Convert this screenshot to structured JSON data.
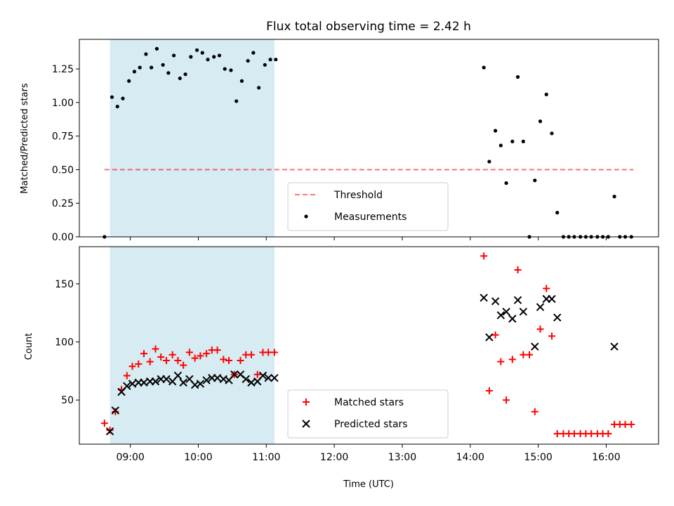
{
  "title": "Flux total observing time = 2.42 h",
  "chart_data": [
    {
      "type": "scatter",
      "panel": "top",
      "title": "Flux total observing time = 2.42 h",
      "xlabel": "",
      "ylabel": "Matched/Predicted stars",
      "x_unit": "hours UTC",
      "xlim": [
        8.25,
        16.77
      ],
      "ylim": [
        0,
        1.47
      ],
      "yticks": [
        0.0,
        0.25,
        0.5,
        0.75,
        1.0,
        1.25
      ],
      "ytick_labels": [
        "0.00",
        "0.25",
        "0.50",
        "0.75",
        "1.00",
        "1.25"
      ],
      "shaded_region": {
        "x0": 8.7,
        "x1": 11.12,
        "color": "#add8e6"
      },
      "threshold": {
        "name": "Threshold",
        "y": 0.5,
        "x0": 8.62,
        "x1": 16.4,
        "color": "#ff0000"
      },
      "legend": {
        "placement": "lower center",
        "entries": [
          "Threshold",
          "Measurements"
        ]
      },
      "series": [
        {
          "name": "Measurements",
          "marker": "dot",
          "color": "#000000",
          "points": [
            [
              8.62,
              0.0
            ],
            [
              8.73,
              1.04
            ],
            [
              8.81,
              0.97
            ],
            [
              8.89,
              1.03
            ],
            [
              8.98,
              1.16
            ],
            [
              9.06,
              1.23
            ],
            [
              9.14,
              1.26
            ],
            [
              9.23,
              1.36
            ],
            [
              9.31,
              1.26
            ],
            [
              9.39,
              1.4
            ],
            [
              9.48,
              1.28
            ],
            [
              9.56,
              1.22
            ],
            [
              9.64,
              1.35
            ],
            [
              9.73,
              1.18
            ],
            [
              9.81,
              1.21
            ],
            [
              9.89,
              1.34
            ],
            [
              9.98,
              1.39
            ],
            [
              10.06,
              1.37
            ],
            [
              10.14,
              1.32
            ],
            [
              10.23,
              1.34
            ],
            [
              10.31,
              1.35
            ],
            [
              10.39,
              1.25
            ],
            [
              10.48,
              1.24
            ],
            [
              10.56,
              1.01
            ],
            [
              10.64,
              1.16
            ],
            [
              10.73,
              1.31
            ],
            [
              10.81,
              1.37
            ],
            [
              10.89,
              1.11
            ],
            [
              10.98,
              1.28
            ],
            [
              11.06,
              1.32
            ],
            [
              11.14,
              1.32
            ],
            [
              14.2,
              1.26
            ],
            [
              14.28,
              0.56
            ],
            [
              14.37,
              0.79
            ],
            [
              14.45,
              0.68
            ],
            [
              14.53,
              0.4
            ],
            [
              14.62,
              0.71
            ],
            [
              14.7,
              1.19
            ],
            [
              14.78,
              0.71
            ],
            [
              14.87,
              0.0
            ],
            [
              14.95,
              0.42
            ],
            [
              15.03,
              0.86
            ],
            [
              15.12,
              1.06
            ],
            [
              15.2,
              0.77
            ],
            [
              15.28,
              0.18
            ],
            [
              15.37,
              0.0
            ],
            [
              15.45,
              0.0
            ],
            [
              15.53,
              0.0
            ],
            [
              15.62,
              0.0
            ],
            [
              15.7,
              0.0
            ],
            [
              15.78,
              0.0
            ],
            [
              15.87,
              0.0
            ],
            [
              15.95,
              0.0
            ],
            [
              16.03,
              0.0
            ],
            [
              16.12,
              0.3
            ],
            [
              16.2,
              0.0
            ],
            [
              16.28,
              0.0
            ],
            [
              16.37,
              0.0
            ]
          ]
        }
      ]
    },
    {
      "type": "scatter",
      "panel": "bottom",
      "xlabel": "Time (UTC)",
      "ylabel": "Count",
      "x_unit": "hours UTC",
      "xlim": [
        8.25,
        16.77
      ],
      "ylim": [
        12,
        182
      ],
      "xticks": [
        9,
        10,
        11,
        12,
        13,
        14,
        15,
        16
      ],
      "xtick_labels": [
        "09:00",
        "10:00",
        "11:00",
        "12:00",
        "13:00",
        "14:00",
        "15:00",
        "16:00"
      ],
      "yticks": [
        50,
        100,
        150
      ],
      "ytick_labels": [
        "50",
        "100",
        "150"
      ],
      "shaded_region": {
        "x0": 8.7,
        "x1": 11.12,
        "color": "#add8e6"
      },
      "legend": {
        "placement": "lower center",
        "entries": [
          "Matched stars",
          "Predicted stars"
        ]
      },
      "series": [
        {
          "name": "Matched stars",
          "marker": "plus",
          "color": "#ff0000",
          "points": [
            [
              8.62,
              30
            ],
            [
              8.7,
              24
            ],
            [
              8.78,
              40
            ],
            [
              8.87,
              59
            ],
            [
              8.95,
              71
            ],
            [
              9.03,
              79
            ],
            [
              9.12,
              81
            ],
            [
              9.2,
              90
            ],
            [
              9.29,
              83
            ],
            [
              9.37,
              94
            ],
            [
              9.45,
              87
            ],
            [
              9.53,
              84
            ],
            [
              9.62,
              89
            ],
            [
              9.7,
              84
            ],
            [
              9.78,
              80
            ],
            [
              9.87,
              91
            ],
            [
              9.95,
              86
            ],
            [
              10.03,
              88
            ],
            [
              10.12,
              90
            ],
            [
              10.2,
              93
            ],
            [
              10.28,
              93
            ],
            [
              10.37,
              85
            ],
            [
              10.45,
              84
            ],
            [
              10.53,
              72
            ],
            [
              10.62,
              84
            ],
            [
              10.7,
              89
            ],
            [
              10.78,
              89
            ],
            [
              10.87,
              72
            ],
            [
              10.95,
              91
            ],
            [
              11.03,
              91
            ],
            [
              11.12,
              91
            ],
            [
              14.2,
              174
            ],
            [
              14.28,
              58
            ],
            [
              14.37,
              106
            ],
            [
              14.45,
              83
            ],
            [
              14.53,
              50
            ],
            [
              14.62,
              85
            ],
            [
              14.7,
              162
            ],
            [
              14.78,
              89
            ],
            [
              14.87,
              89
            ],
            [
              14.95,
              40
            ],
            [
              15.03,
              111
            ],
            [
              15.12,
              146
            ],
            [
              15.2,
              105
            ],
            [
              15.28,
              21
            ],
            [
              15.37,
              21
            ],
            [
              15.45,
              21
            ],
            [
              15.53,
              21
            ],
            [
              15.62,
              21
            ],
            [
              15.7,
              21
            ],
            [
              15.78,
              21
            ],
            [
              15.87,
              21
            ],
            [
              15.95,
              21
            ],
            [
              16.03,
              21
            ],
            [
              16.12,
              29
            ],
            [
              16.2,
              29
            ],
            [
              16.28,
              29
            ],
            [
              16.37,
              29
            ]
          ]
        },
        {
          "name": "Predicted stars",
          "marker": "x",
          "color": "#000000",
          "points": [
            [
              8.7,
              23
            ],
            [
              8.78,
              41
            ],
            [
              8.87,
              57
            ],
            [
              8.95,
              62
            ],
            [
              9.03,
              64
            ],
            [
              9.12,
              65
            ],
            [
              9.2,
              65
            ],
            [
              9.29,
              66
            ],
            [
              9.37,
              66
            ],
            [
              9.45,
              68
            ],
            [
              9.53,
              68
            ],
            [
              9.62,
              66
            ],
            [
              9.7,
              71
            ],
            [
              9.78,
              65
            ],
            [
              9.87,
              68
            ],
            [
              9.95,
              63
            ],
            [
              10.03,
              64
            ],
            [
              10.12,
              67
            ],
            [
              10.2,
              69
            ],
            [
              10.28,
              69
            ],
            [
              10.37,
              68
            ],
            [
              10.45,
              67
            ],
            [
              10.53,
              72
            ],
            [
              10.62,
              72
            ],
            [
              10.7,
              68
            ],
            [
              10.78,
              65
            ],
            [
              10.87,
              66
            ],
            [
              10.95,
              71
            ],
            [
              11.03,
              69
            ],
            [
              11.12,
              69
            ],
            [
              14.2,
              138
            ],
            [
              14.28,
              104
            ],
            [
              14.37,
              135
            ],
            [
              14.45,
              123
            ],
            [
              14.53,
              126
            ],
            [
              14.62,
              120
            ],
            [
              14.7,
              136
            ],
            [
              14.78,
              126
            ],
            [
              14.95,
              96
            ],
            [
              15.03,
              130
            ],
            [
              15.12,
              137
            ],
            [
              15.2,
              137
            ],
            [
              15.28,
              121
            ],
            [
              16.12,
              96
            ]
          ]
        }
      ]
    }
  ]
}
